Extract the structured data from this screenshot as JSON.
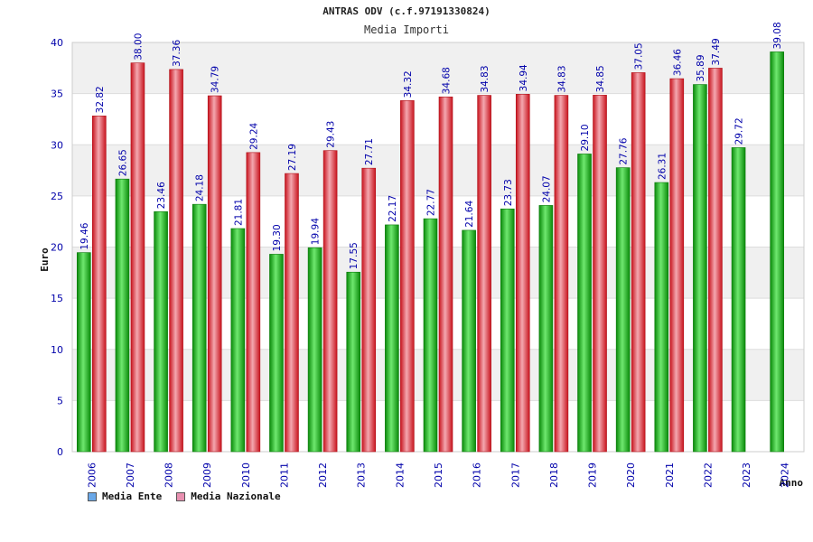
{
  "title": "ANTRAS ODV (c.f.97191330824)",
  "subtitle": "Media Importi",
  "chart_data": {
    "type": "bar",
    "title": "ANTRAS ODV (c.f.97191330824)",
    "subtitle": "Media Importi",
    "xlabel": "Anno",
    "ylabel": "Euro",
    "ylim": [
      0,
      40
    ],
    "yticks": [
      0,
      5,
      10,
      15,
      20,
      25,
      30,
      35,
      40
    ],
    "grid": true,
    "legend_position": "bottom-left",
    "categories": [
      "2006",
      "2007",
      "2008",
      "2009",
      "2010",
      "2011",
      "2012",
      "2013",
      "2014",
      "2015",
      "2016",
      "2017",
      "2018",
      "2019",
      "2020",
      "2021",
      "2022",
      "2023",
      "2024"
    ],
    "series": [
      {
        "name": "Media Ente",
        "color": "#22c022",
        "legend_color": "#6aa8e8",
        "values": [
          19.46,
          26.65,
          23.46,
          24.18,
          21.81,
          19.3,
          19.94,
          17.55,
          22.17,
          22.77,
          21.64,
          23.73,
          24.07,
          29.1,
          27.76,
          26.31,
          35.89,
          29.72,
          39.08
        ],
        "labels": [
          "19.46",
          "26.65",
          "23.46",
          "24.18",
          "21.81",
          "19.30",
          "19.94",
          "17.55",
          "22.17",
          "22.77",
          "21.64",
          "23.73",
          "24.07",
          "29.10",
          "27.76",
          "26.31",
          "35.89",
          "29.72",
          "39.08"
        ]
      },
      {
        "name": "Media Nazionale",
        "color": "#e8303c",
        "legend_color": "#e890b0",
        "values": [
          32.82,
          38.0,
          37.36,
          34.79,
          29.24,
          27.19,
          29.43,
          27.71,
          34.32,
          34.68,
          34.83,
          34.94,
          34.83,
          34.85,
          37.05,
          36.46,
          37.49,
          null,
          null
        ],
        "labels": [
          "32.82",
          "38.00",
          "37.36",
          "34.79",
          "29.24",
          "27.19",
          "29.43",
          "27.71",
          "34.32",
          "34.68",
          "34.83",
          "34.94",
          "34.83",
          "34.85",
          "37.05",
          "36.46",
          "37.49",
          "",
          ""
        ]
      }
    ]
  }
}
